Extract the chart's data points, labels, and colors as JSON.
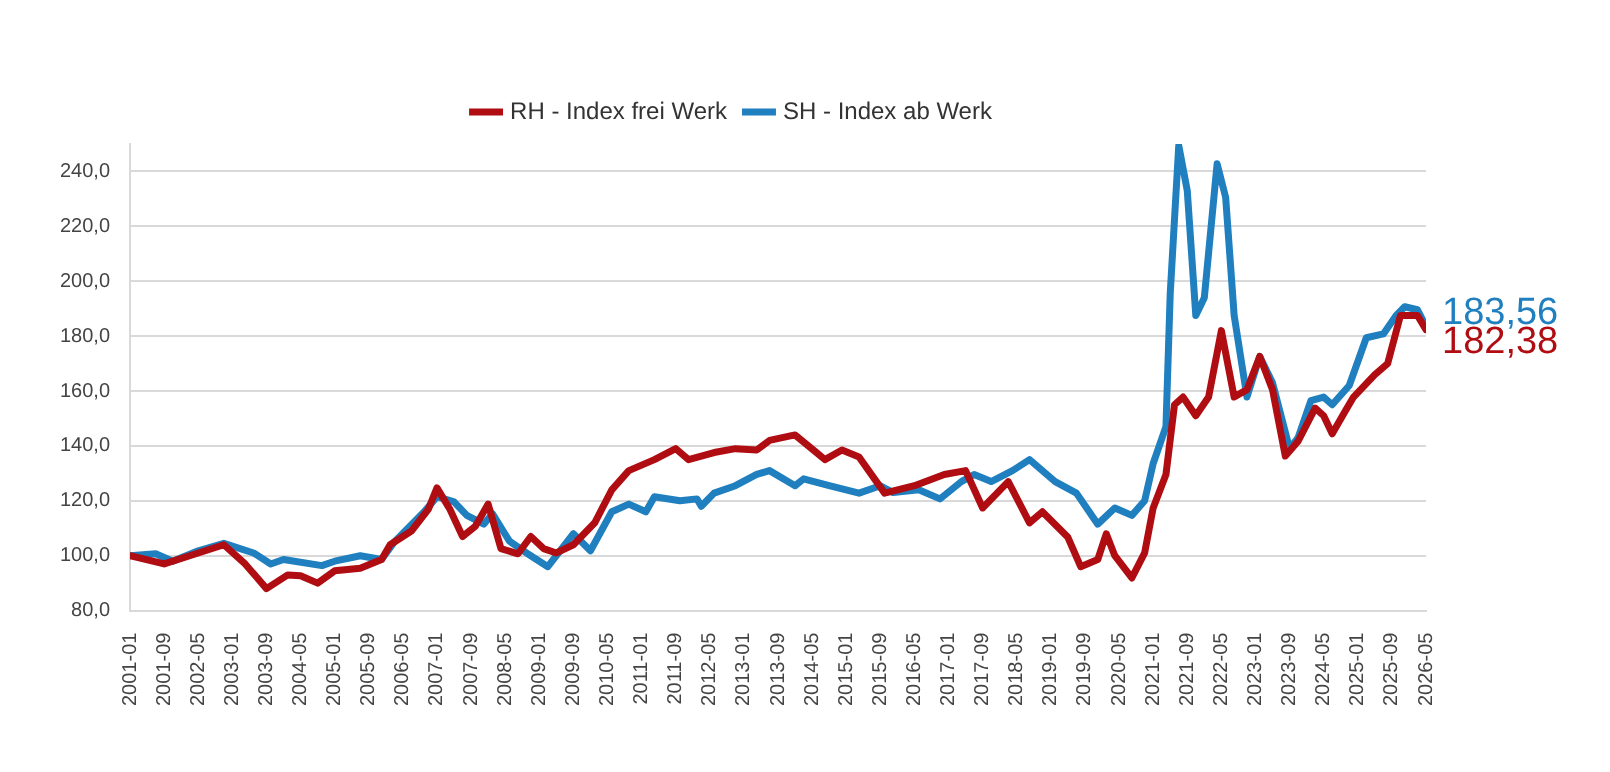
{
  "chart_data": {
    "type": "line",
    "xlim": [
      "2001-01",
      "2026-05"
    ],
    "xticks": [
      "2001-01",
      "2001-09",
      "2002-05",
      "2003-01",
      "2003-09",
      "2004-05",
      "2005-01",
      "2005-09",
      "2006-05",
      "2007-01",
      "2007-09",
      "2008-05",
      "2009-01",
      "2009-09",
      "2010-05",
      "2011-01",
      "2011-09",
      "2012-05",
      "2013-01",
      "2013-09",
      "2014-05",
      "2015-01",
      "2015-09",
      "2016-05",
      "2017-01",
      "2017-09",
      "2018-05",
      "2019-01",
      "2019-09",
      "2020-05",
      "2021-01",
      "2021-09",
      "2022-05",
      "2023-01",
      "2023-09",
      "2024-05",
      "2025-01",
      "2025-09",
      "2026-05"
    ],
    "ylim": [
      80,
      250
    ],
    "yticks": [
      {
        "value": 80,
        "label": "80,0"
      },
      {
        "value": 100,
        "label": "100,0"
      },
      {
        "value": 120,
        "label": "120,0"
      },
      {
        "value": 140,
        "label": "140,0"
      },
      {
        "value": 160,
        "label": "160,0"
      },
      {
        "value": 180,
        "label": "180,0"
      },
      {
        "value": 200,
        "label": "200,0"
      },
      {
        "value": 220,
        "label": "220,0"
      },
      {
        "value": 240,
        "label": "240,0"
      }
    ],
    "grid": "y",
    "legend": "top",
    "marker": "none",
    "line_style": "solid",
    "series": [
      {
        "name": "RH - Index frei Werk",
        "color": "#b00d12",
        "x": [
          "2001-01",
          "2001-09",
          "2002-03",
          "2002-11",
          "2003-04",
          "2003-09",
          "2004-02",
          "2004-05",
          "2004-09",
          "2005-01",
          "2005-07",
          "2005-12",
          "2006-02",
          "2006-07",
          "2006-11",
          "2007-01",
          "2007-04",
          "2007-07",
          "2007-10",
          "2008-01",
          "2008-04",
          "2008-08",
          "2008-11",
          "2009-02",
          "2009-05",
          "2009-09",
          "2010-02",
          "2010-06",
          "2010-10",
          "2011-04",
          "2011-09",
          "2011-12",
          "2012-06",
          "2012-11",
          "2013-04",
          "2013-07",
          "2014-01",
          "2014-06",
          "2014-08",
          "2014-12",
          "2015-04",
          "2015-10",
          "2016-05",
          "2016-12",
          "2017-05",
          "2017-09",
          "2018-03",
          "2018-08",
          "2018-11",
          "2019-05",
          "2019-08",
          "2019-12",
          "2020-02",
          "2020-04",
          "2020-08",
          "2020-11",
          "2021-01",
          "2021-04",
          "2021-06",
          "2021-08",
          "2021-11",
          "2022-02",
          "2022-05",
          "2022-08",
          "2022-11",
          "2023-02",
          "2023-05",
          "2023-08",
          "2023-11",
          "2024-03",
          "2024-05",
          "2024-07",
          "2024-10",
          "2024-12",
          "2025-05",
          "2025-08",
          "2025-11",
          "2026-03",
          "2026-05"
        ],
        "values": [
          100,
          97,
          100,
          104,
          97,
          88,
          93,
          92.7,
          90,
          94.5,
          95.4,
          98.6,
          104,
          109,
          117,
          124.7,
          117,
          107,
          110.7,
          118.8,
          102.6,
          100.7,
          107,
          102.6,
          101,
          104,
          112,
          124,
          131,
          135,
          139,
          135,
          137.6,
          139,
          138.5,
          142,
          144,
          137.6,
          135,
          138.5,
          136,
          122.8,
          125.5,
          129.6,
          131,
          117.4,
          127,
          112,
          116,
          106.7,
          96,
          98.6,
          108,
          100,
          91.9,
          101,
          117.4,
          129.6,
          155,
          157.8,
          151,
          157.8,
          182,
          157.8,
          160.5,
          172.6,
          160.5,
          136.3,
          141.7,
          153.8,
          151,
          144.4,
          152.5,
          157.8,
          166,
          170,
          187.5,
          187.5,
          182.38
        ]
      },
      {
        "name": "SH - Index ab Werk",
        "color": "#1f7fbf",
        "x": [
          "2001-01",
          "2001-07",
          "2001-11",
          "2002-05",
          "2002-11",
          "2003-06",
          "2003-10",
          "2004-01",
          "2004-10",
          "2005-01",
          "2005-07",
          "2005-12",
          "2006-03",
          "2006-10",
          "2007-01",
          "2007-05",
          "2007-08",
          "2007-12",
          "2008-02",
          "2008-06",
          "2008-10",
          "2009-03",
          "2009-09",
          "2010-01",
          "2010-06",
          "2010-10",
          "2011-02",
          "2011-04",
          "2011-10",
          "2012-02",
          "2012-03",
          "2012-06",
          "2012-11",
          "2013-04",
          "2013-07",
          "2014-01",
          "2014-03",
          "2014-09",
          "2015-04",
          "2015-09",
          "2015-12",
          "2016-06",
          "2016-11",
          "2017-04",
          "2017-07",
          "2017-11",
          "2018-04",
          "2018-08",
          "2019-02",
          "2019-07",
          "2019-12",
          "2020-04",
          "2020-08",
          "2020-11",
          "2021-01",
          "2021-04",
          "2021-05",
          "2021-07",
          "2021-09",
          "2021-11",
          "2022-01",
          "2022-04",
          "2022-06",
          "2022-08",
          "2022-11",
          "2023-02",
          "2023-05",
          "2023-09",
          "2023-11",
          "2024-02",
          "2024-05",
          "2024-07",
          "2024-11",
          "2025-03",
          "2025-07",
          "2025-10",
          "2025-12",
          "2026-03",
          "2026-05"
        ],
        "values": [
          100,
          100.7,
          98,
          101.8,
          104.5,
          101,
          97,
          98.6,
          96.4,
          98,
          100,
          98.6,
          105,
          116,
          121.5,
          119.6,
          114.7,
          111.5,
          115.3,
          105.3,
          101,
          96,
          108,
          101.8,
          116,
          118.8,
          116,
          121.5,
          120,
          120.7,
          118,
          122.8,
          125.5,
          129.6,
          131,
          125.5,
          128,
          125.5,
          122.8,
          125.5,
          123,
          124,
          120.7,
          127,
          129.6,
          127,
          131,
          135,
          127,
          122.8,
          111.5,
          117.4,
          114.7,
          120,
          133.6,
          147,
          195.5,
          249.4,
          233,
          187.5,
          194,
          242.8,
          230.6,
          187.5,
          157.8,
          172.6,
          163,
          139,
          143,
          156.5,
          157.8,
          155,
          162,
          179.4,
          180.8,
          187.5,
          190.7,
          189.6,
          183.56
        ]
      }
    ],
    "annotations": [
      {
        "text": "183,56",
        "x": "2026-05",
        "y": 183.56
      },
      {
        "text": "182,38",
        "x": "2026-05",
        "y": 182.38
      }
    ]
  }
}
